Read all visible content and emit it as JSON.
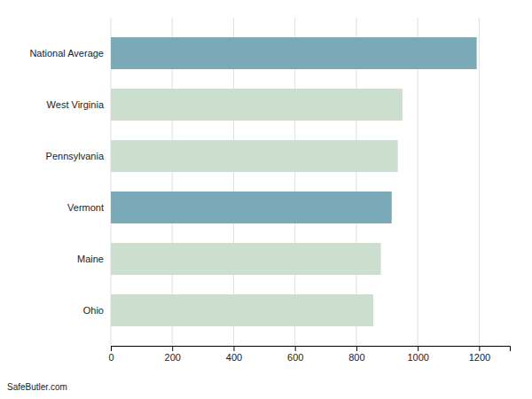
{
  "chart_data": {
    "type": "bar",
    "orientation": "horizontal",
    "categories": [
      "Ohio",
      "Maine",
      "Vermont",
      "Pennsylvania",
      "West Virginia",
      "National Average"
    ],
    "values": [
      855,
      880,
      915,
      935,
      950,
      1192
    ],
    "colors": [
      "#ccdece",
      "#ccdece",
      "#7aaab8",
      "#ccdece",
      "#ccdece",
      "#7aaab8"
    ],
    "xlim": [
      0,
      1300
    ],
    "xticks": [
      0,
      200,
      400,
      600,
      800,
      1000,
      1200
    ],
    "grid": true,
    "annotations": [
      "SafeButler.com"
    ]
  }
}
